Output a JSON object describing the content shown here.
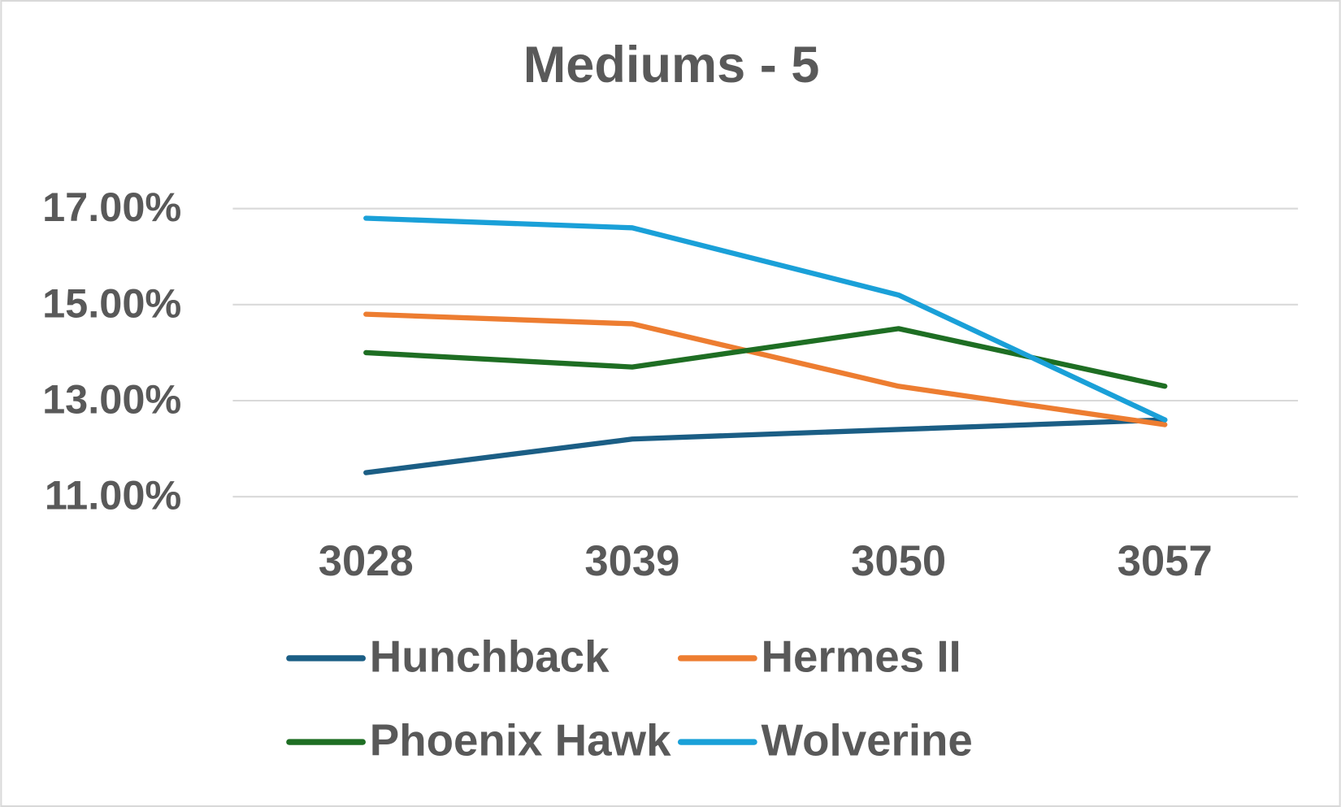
{
  "chart_data": {
    "type": "line",
    "title": "Mediums - 5",
    "categories": [
      "3028",
      "3039",
      "3050",
      "3057"
    ],
    "series": [
      {
        "name": "Hunchback",
        "color": "#1b5e85",
        "values": [
          11.5,
          12.2,
          12.4,
          12.6
        ]
      },
      {
        "name": "Hermes II",
        "color": "#ed7d31",
        "values": [
          14.8,
          14.6,
          13.3,
          12.5
        ]
      },
      {
        "name": "Phoenix Hawk",
        "color": "#1e6e23",
        "values": [
          14.0,
          13.7,
          14.5,
          13.3
        ]
      },
      {
        "name": "Wolverine",
        "color": "#1aa0d8",
        "values": [
          16.8,
          16.6,
          15.2,
          12.6
        ]
      }
    ],
    "ylim": [
      11,
      17
    ],
    "yticks": [
      {
        "value": 11,
        "label": "11.00%"
      },
      {
        "value": 13,
        "label": "13.00%"
      },
      {
        "value": 15,
        "label": "15.00%"
      },
      {
        "value": 17,
        "label": "17.00%"
      }
    ],
    "grid": true,
    "legend": "bottom"
  }
}
